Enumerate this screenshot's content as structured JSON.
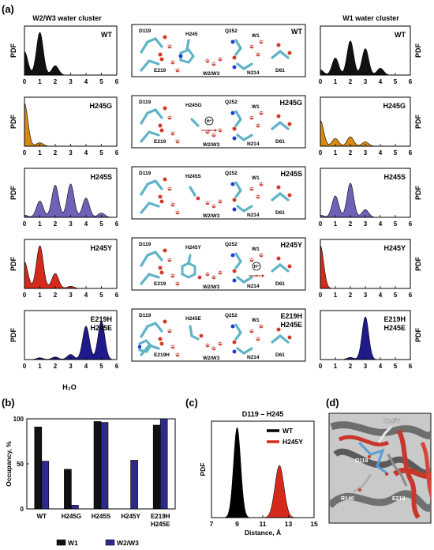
{
  "panel_labels": {
    "a": "(a)",
    "b": "(b)",
    "c": "(c)",
    "d": "(d)"
  },
  "colors": {
    "WT": "#111111",
    "H245G": "#d68a12",
    "H245S": "#6e62b6",
    "H245Y": "#d42a1c",
    "E219H_H245E": "#1f1a8c",
    "W1_bar": "#111111",
    "W2W3_bar": "#2e2a8a",
    "WT_dist": "#000000",
    "H245Y_dist": "#d42a1c",
    "carbon": "#5fb3c7",
    "oxygen": "#d23a2a",
    "nitrogen": "#1f3fc9",
    "hydrogen": "#ffffff"
  },
  "column_titles": {
    "left": "W2/W3 water cluster",
    "right": "W1 water cluster"
  },
  "pdf_label": "PDF",
  "x_ticks": [
    "0",
    "1",
    "2",
    "3",
    "4",
    "5",
    "6"
  ],
  "x_label": "H₂O",
  "structure_panels": [
    {
      "variant_label": [
        "WT"
      ],
      "res_d119": "D119",
      "res_h245": "H245",
      "res_q252": "Q252",
      "res_w1": "W1",
      "res_e219": "E219",
      "res_w23": "W2/W3",
      "res_n214": "N214",
      "res_d61": "D61",
      "proton": "",
      "proton_side": ""
    },
    {
      "variant_label": [
        "H245G"
      ],
      "res_d119": "D119",
      "res_h245": "H245G",
      "res_q252": "Q252",
      "res_w1": "W1",
      "res_e219": "E219",
      "res_w23": "W2/W3",
      "res_n214": "N214",
      "res_d61": "D61",
      "proton": "H⁺",
      "proton_side": "left"
    },
    {
      "variant_label": [
        "H245S"
      ],
      "res_d119": "D119",
      "res_h245": "H245S",
      "res_q252": "Q252",
      "res_w1": "W1",
      "res_e219": "",
      "res_w23": "W2/W3",
      "res_n214": "N214",
      "res_d61": "D61",
      "proton": "",
      "proton_side": ""
    },
    {
      "variant_label": [
        "H245Y"
      ],
      "res_d119": "D119",
      "res_h245": "H245Y",
      "res_q252": "Q252",
      "res_w1": "W1",
      "res_e219": "E219",
      "res_w23": "W2/W3",
      "res_n214": "N214",
      "res_d61": "D61",
      "proton": "H⁺",
      "proton_side": "right"
    },
    {
      "variant_label": [
        "E219H",
        "H245E"
      ],
      "res_d119": "D119",
      "res_h245": "H245E",
      "res_q252": "Q252",
      "res_w1": "W1",
      "res_e219": "E219H",
      "res_w23": "W2/W3",
      "res_n214": "N214",
      "res_d61": "D61",
      "proton": "",
      "proton_side": ""
    }
  ],
  "chart_data": [
    {
      "panel": "a-left",
      "type": "area",
      "xlim": [
        0,
        6
      ],
      "xlabel": "H₂O",
      "ylabel": "PDF",
      "series": [
        {
          "name": "WT",
          "label": [
            "WT"
          ],
          "color_key": "WT",
          "peaks": [
            [
              0,
              0.55
            ],
            [
              1,
              1.0
            ],
            [
              2,
              0.22
            ]
          ]
        },
        {
          "name": "H245G",
          "label": [
            "H245G"
          ],
          "color_key": "H245G",
          "peaks": [
            [
              0,
              1.0
            ],
            [
              1,
              0.08
            ]
          ]
        },
        {
          "name": "H245S",
          "label": [
            "H245S"
          ],
          "color_key": "H245S",
          "peaks": [
            [
              0,
              0.05
            ],
            [
              1,
              0.38
            ],
            [
              2,
              0.75
            ],
            [
              3,
              0.78
            ],
            [
              4,
              0.45
            ],
            [
              5,
              0.1
            ]
          ]
        },
        {
          "name": "H245Y",
          "label": [
            "H245Y"
          ],
          "color_key": "H245Y",
          "peaks": [
            [
              0,
              0.62
            ],
            [
              1,
              1.0
            ],
            [
              2,
              0.35
            ],
            [
              3,
              0.05
            ]
          ]
        },
        {
          "name": "E219H/H245E",
          "label": [
            "E219H",
            "H245E"
          ],
          "color_key": "E219H_H245E",
          "peaks": [
            [
              1,
              0.04
            ],
            [
              2,
              0.06
            ],
            [
              3,
              0.12
            ],
            [
              4,
              0.78
            ],
            [
              5,
              0.9
            ]
          ]
        }
      ]
    },
    {
      "panel": "a-right",
      "type": "area",
      "xlim": [
        0,
        6
      ],
      "xlabel": "",
      "ylabel": "PDF",
      "series": [
        {
          "name": "WT",
          "label": [
            "WT"
          ],
          "color_key": "WT",
          "peaks": [
            [
              0,
              0.12
            ],
            [
              1,
              0.4
            ],
            [
              2,
              0.8
            ],
            [
              3,
              0.62
            ],
            [
              4,
              0.16
            ]
          ]
        },
        {
          "name": "H245G",
          "label": [
            "H245G"
          ],
          "color_key": "H245G",
          "peaks": [
            [
              0,
              0.6
            ],
            [
              1,
              0.18
            ],
            [
              2,
              0.22
            ],
            [
              3,
              0.1
            ]
          ]
        },
        {
          "name": "H245S",
          "label": [
            "H245S"
          ],
          "color_key": "H245S",
          "peaks": [
            [
              0,
              0.05
            ],
            [
              1,
              0.5
            ],
            [
              2,
              0.8
            ],
            [
              3,
              0.18
            ]
          ]
        },
        {
          "name": "H245Y",
          "label": [
            "H245Y"
          ],
          "color_key": "H245Y",
          "peaks": [
            [
              0,
              1.0
            ]
          ]
        },
        {
          "name": "E219H/H245E",
          "label": [
            "E219H",
            "H245E"
          ],
          "color_key": "E219H_H245E",
          "peaks": [
            [
              2,
              0.05
            ],
            [
              3,
              1.0
            ]
          ]
        }
      ]
    },
    {
      "panel": "b",
      "type": "bar",
      "categories": [
        [
          "WT"
        ],
        [
          "H245G"
        ],
        [
          "H245S"
        ],
        [
          "H245Y"
        ],
        [
          "E219H",
          "H245E"
        ]
      ],
      "series": [
        {
          "name": "W1",
          "color_key": "W1_bar",
          "values": [
            91,
            44,
            97,
            null,
            93
          ]
        },
        {
          "name": "W2/W3",
          "color_key": "W2W3_bar",
          "values": [
            53,
            4,
            96,
            54,
            100
          ]
        }
      ],
      "ylabel": "Occupancy, %",
      "ylim": [
        0,
        100
      ],
      "yticks": [
        "0",
        "50",
        "100"
      ],
      "legend": "bottom"
    },
    {
      "panel": "c",
      "type": "area",
      "title": "D119 – H245",
      "xlabel": "Distance, Å",
      "ylabel": "PDF",
      "xlim": [
        7,
        15
      ],
      "xticks": [
        "7",
        "9",
        "11",
        "13",
        "15"
      ],
      "series": [
        {
          "name": "WT",
          "color_key": "WT_dist",
          "mean": 9.0,
          "sd": 0.28,
          "height": 1.0
        },
        {
          "name": "H245Y",
          "color_key": "H245Y_dist",
          "mean": 12.3,
          "sd": 0.35,
          "height": 0.58
        }
      ],
      "legend": "top-right"
    }
  ],
  "panel_d_labels": {
    "h245y": "H245Y",
    "d119": "D119",
    "r140": "R140",
    "e219": "E219"
  }
}
